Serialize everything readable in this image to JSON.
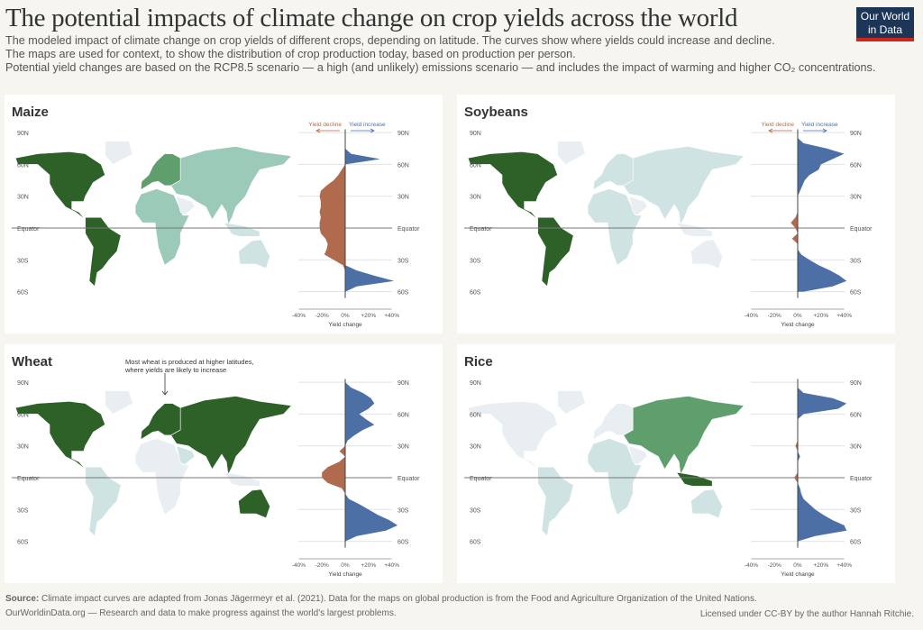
{
  "title": "The potential impacts of climate change on crop yields across the world",
  "subtitle": [
    "The modeled impact of climate change on crop yields of different crops, depending on latitude. The curves show where yields could increase and decline.",
    "The maps are used for context, to show the distribution of crop production today, based on production per person.",
    "Potential yield changes are based on the RCP8.5 scenario — a high (and unlikely) emissions scenario — and includes the impact of warming and higher CO₂ concentrations."
  ],
  "logo": "Our World in Data",
  "footer": {
    "source_label": "Source:",
    "source": "Climate impact curves are adapted from Jonas Jägermeyr et al. (2021). Data for the maps on global production is from the Food and Agriculture Organization of the United Nations.",
    "tagline": "OurWorldinData.org — Research and data to make progress against the world's largest problems.",
    "license": "Licensed under CC-BY by the author Hannah Ritchie."
  },
  "colors": {
    "increase": "#4c6fa5",
    "decline": "#b06a4d",
    "land_none": "#e9eef2",
    "shade1": "#cfe3e3",
    "shade2": "#9ccab8",
    "shade3": "#5f9f6e",
    "shade4": "#2d6127"
  },
  "legend": {
    "decline": "Yield decline",
    "increase": "Yield increase"
  },
  "chart_data": [
    {
      "type": "area",
      "title": "Maize",
      "xlabel": "Yield change",
      "xticks": [
        "-40%",
        "-20%",
        "0%",
        "+20%",
        "+40%"
      ],
      "xlim": [
        -40,
        40
      ],
      "yticks": [
        "90N",
        "60N",
        "30N",
        "Equator",
        "30S",
        "60S"
      ],
      "show_legend": true,
      "latitude": [
        90,
        85,
        80,
        75,
        70,
        65,
        60,
        55,
        50,
        45,
        40,
        35,
        30,
        25,
        20,
        15,
        10,
        5,
        0,
        -5,
        -10,
        -15,
        -20,
        -25,
        -30,
        -35,
        -40,
        -45,
        -50,
        -55,
        -60
      ],
      "values": [
        0,
        0,
        0,
        0,
        5,
        30,
        0,
        -3,
        -6,
        -10,
        -16,
        -21,
        -22,
        -21,
        -21,
        -22,
        -21,
        -22,
        -22,
        -21,
        -17,
        -15,
        -16,
        -18,
        -10,
        -2,
        10,
        25,
        42,
        10,
        0
      ],
      "map_shading": {
        "na": "shade4",
        "greenland": "land_none",
        "sa": "shade4",
        "europe": "shade3",
        "africa": "shade2",
        "asia": "shade2",
        "arabia": "land_none",
        "australia": "shade1",
        "indonesia": "shade1"
      }
    },
    {
      "type": "area",
      "title": "Soybeans",
      "xlabel": "Yield change",
      "xticks": [
        "-40%",
        "-20%",
        "0%",
        "+20%",
        "+40%"
      ],
      "xlim": [
        -40,
        40
      ],
      "yticks": [
        "90N",
        "60N",
        "30N",
        "Equator",
        "30S",
        "60S"
      ],
      "show_legend": true,
      "latitude": [
        90,
        85,
        80,
        75,
        70,
        65,
        60,
        55,
        50,
        45,
        40,
        35,
        30,
        25,
        20,
        15,
        10,
        5,
        0,
        -5,
        -10,
        -15,
        -20,
        -25,
        -30,
        -35,
        -40,
        -45,
        -50,
        -55,
        -60
      ],
      "values": [
        0,
        0,
        5,
        25,
        40,
        30,
        20,
        18,
        10,
        6,
        4,
        2,
        0,
        0,
        0,
        0,
        -2,
        -6,
        -2,
        0,
        -5,
        0,
        0,
        3,
        10,
        18,
        28,
        36,
        42,
        30,
        5
      ],
      "map_shading": {
        "na": "shade4",
        "greenland": "land_none",
        "sa": "shade4",
        "europe": "shade1",
        "africa": "shade1",
        "asia": "shade1",
        "arabia": "land_none",
        "australia": "land_none",
        "indonesia": "land_none"
      }
    },
    {
      "type": "area",
      "title": "Wheat",
      "xlabel": "Yield change",
      "xticks": [
        "-40%",
        "-20%",
        "0%",
        "+20%",
        "+40%"
      ],
      "xlim": [
        -40,
        40
      ],
      "yticks": [
        "90N",
        "60N",
        "30N",
        "Equator",
        "30S",
        "60S"
      ],
      "show_legend": false,
      "annotation": [
        "Most wheat is produced at higher latitudes,",
        "where yields are likely to increase"
      ],
      "latitude": [
        90,
        85,
        80,
        75,
        70,
        65,
        60,
        55,
        50,
        45,
        40,
        35,
        30,
        25,
        20,
        15,
        10,
        5,
        0,
        -5,
        -10,
        -15,
        -20,
        -25,
        -30,
        -35,
        -40,
        -45,
        -50,
        -55,
        -60
      ],
      "values": [
        0,
        5,
        15,
        22,
        25,
        20,
        12,
        18,
        25,
        15,
        8,
        2,
        0,
        -5,
        0,
        -5,
        -15,
        -20,
        -20,
        -15,
        -3,
        0,
        3,
        12,
        20,
        28,
        38,
        45,
        35,
        10,
        0
      ],
      "map_shading": {
        "na": "shade4",
        "greenland": "land_none",
        "sa": "shade1",
        "europe": "shade4",
        "africa": "land_none",
        "asia": "shade4",
        "arabia": "shade1",
        "australia": "shade4",
        "indonesia": "land_none"
      }
    },
    {
      "type": "area",
      "title": "Rice",
      "xlabel": "Yield change",
      "xticks": [
        "-40%",
        "-20%",
        "0%",
        "+20%",
        "+40%"
      ],
      "xlim": [
        -40,
        40
      ],
      "yticks": [
        "90N",
        "60N",
        "30N",
        "Equator",
        "30S",
        "60S"
      ],
      "show_legend": false,
      "latitude": [
        90,
        85,
        80,
        75,
        70,
        65,
        60,
        55,
        50,
        45,
        40,
        35,
        30,
        25,
        20,
        15,
        10,
        5,
        0,
        -5,
        -10,
        -15,
        -20,
        -25,
        -30,
        -35,
        -40,
        -45,
        -50,
        -55,
        -60
      ],
      "values": [
        0,
        0,
        5,
        30,
        42,
        35,
        5,
        0,
        0,
        0,
        0,
        0,
        -2,
        0,
        2,
        0,
        0,
        0,
        -3,
        0,
        2,
        3,
        5,
        10,
        15,
        22,
        30,
        40,
        42,
        15,
        0
      ],
      "map_shading": {
        "na": "land_none",
        "greenland": "land_none",
        "sa": "shade1",
        "europe": "land_none",
        "africa": "shade1",
        "asia": "shade3",
        "arabia": "land_none",
        "australia": "shade1",
        "indonesia": "shade4"
      }
    }
  ]
}
